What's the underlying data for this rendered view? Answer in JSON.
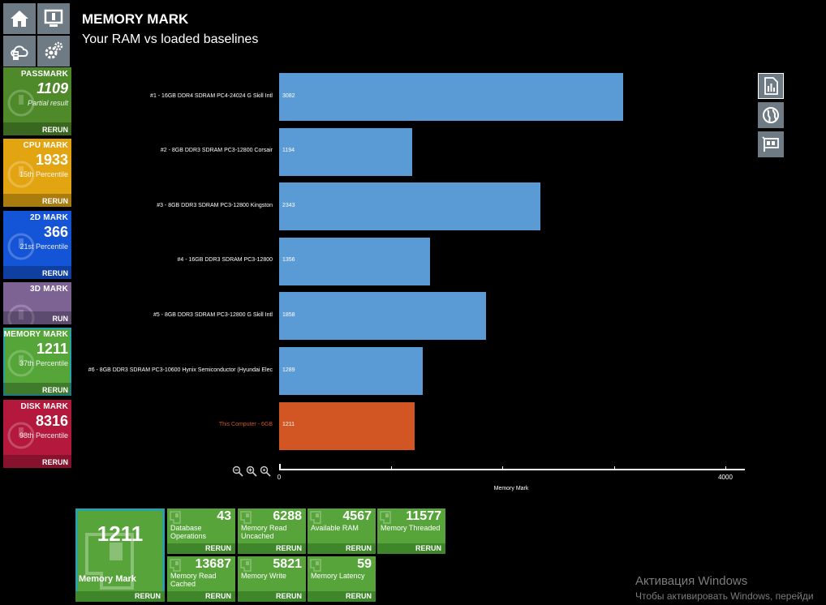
{
  "header": {
    "title": "MEMORY MARK",
    "subtitle": "Your RAM vs loaded baselines"
  },
  "nav": {
    "icons": [
      "home-icon",
      "monitor-icon",
      "cloud-icon",
      "gears-icon"
    ]
  },
  "side_tiles": [
    {
      "title": "PASSMARK",
      "score": "1109",
      "sub": "Partial result",
      "action": "RERUN",
      "color": "#4e8a2a"
    },
    {
      "title": "CPU MARK",
      "score": "1933",
      "sub": "15th Percentile",
      "action": "RERUN",
      "color": "#e3a412"
    },
    {
      "title": "2D MARK",
      "score": "366",
      "sub": "21st Percentile",
      "action": "RERUN",
      "color": "#1454d6"
    },
    {
      "title": "3D MARK",
      "score": "",
      "sub": "",
      "action": "RUN",
      "color": "#7d6394"
    },
    {
      "title": "MEMORY MARK",
      "score": "1211",
      "sub": "37th Percentile",
      "action": "RERUN",
      "color": "#55a538"
    },
    {
      "title": "DISK MARK",
      "score": "8316",
      "sub": "98th Percentile",
      "action": "RERUN",
      "color": "#b4183c"
    }
  ],
  "chart_data": {
    "type": "bar",
    "orientation": "horizontal",
    "categories": [
      "#1 - 16GB DDR4 SDRAM PC4-24024 G Skill Intl",
      "#2 - 8GB DDR3 SDRAM PC3-12800 Corsair",
      "#3 - 8GB DDR3 SDRAM PC3-12800 Kingston",
      "#4 - 16GB DDR3 SDRAM PC3-12800",
      "#5 - 8GB DDR3 SDRAM PC3-12800 G Skill Intl",
      "#6 - 8GB DDR3 SDRAM PC3-10600 Hynix Semiconductor (Hyundai Elec",
      "This Computer - 6GB"
    ],
    "values": [
      3082,
      1194,
      2343,
      1356,
      1858,
      1289,
      1211
    ],
    "value_labels": [
      "3082",
      "1194",
      "2343",
      "1356",
      "1858",
      "1289",
      "1211"
    ],
    "colors": [
      "#5b9bd5",
      "#5b9bd5",
      "#5b9bd5",
      "#5b9bd5",
      "#5b9bd5",
      "#5b9bd5",
      "#d25623"
    ],
    "highlight_label_color": "#d25623",
    "xlabel": "Memory Mark",
    "xlim": [
      0,
      4000
    ],
    "ticks": [
      0,
      1000,
      2000,
      3000,
      4000
    ],
    "tick_labels": [
      "0",
      "",
      "",
      "",
      "4000"
    ],
    "grid": false,
    "legend": "none"
  },
  "zoom_icons": [
    "zoom-out-icon",
    "zoom-in-icon",
    "zoom-reset-icon"
  ],
  "right_icons": [
    "report-icon",
    "globe-icon",
    "hardware-icon"
  ],
  "summary": {
    "value": "1211",
    "label": "Memory Mark",
    "action": "RERUN"
  },
  "sub_tiles": [
    {
      "value": "43",
      "label": "Database Operations",
      "action": "RERUN"
    },
    {
      "value": "6288",
      "label": "Memory Read Uncached",
      "action": "RERUN"
    },
    {
      "value": "4567",
      "label": "Available RAM",
      "action": "RERUN"
    },
    {
      "value": "11577",
      "label": "Memory Threaded",
      "action": "RERUN"
    },
    {
      "value": "13687",
      "label": "Memory Read Cached",
      "action": "RERUN"
    },
    {
      "value": "5821",
      "label": "Memory Write",
      "action": "RERUN"
    },
    {
      "value": "59",
      "label": "Memory Latency",
      "action": "RERUN"
    }
  ],
  "watermark": {
    "line1": "Активация Windows",
    "line2": "Чтобы активировать Windows, перейди"
  }
}
